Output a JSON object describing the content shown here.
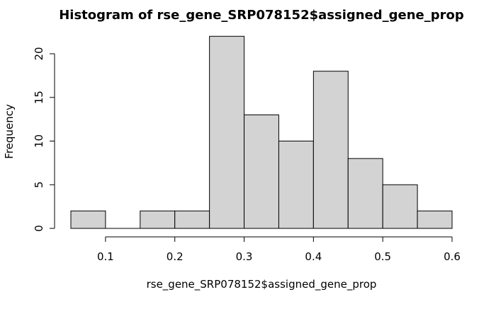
{
  "chart_data": {
    "type": "bar",
    "title": "Histogram of rse_gene_SRP078152$assigned_gene_prop",
    "xlabel": "rse_gene_SRP078152$assigned_gene_prop",
    "ylabel": "Frequency",
    "bins": [
      {
        "start": 0.05,
        "end": 0.1,
        "count": 2
      },
      {
        "start": 0.1,
        "end": 0.15,
        "count": 0
      },
      {
        "start": 0.15,
        "end": 0.2,
        "count": 2
      },
      {
        "start": 0.2,
        "end": 0.25,
        "count": 2
      },
      {
        "start": 0.25,
        "end": 0.3,
        "count": 22
      },
      {
        "start": 0.3,
        "end": 0.35,
        "count": 13
      },
      {
        "start": 0.35,
        "end": 0.4,
        "count": 10
      },
      {
        "start": 0.4,
        "end": 0.45,
        "count": 18
      },
      {
        "start": 0.45,
        "end": 0.5,
        "count": 8
      },
      {
        "start": 0.5,
        "end": 0.55,
        "count": 5
      },
      {
        "start": 0.55,
        "end": 0.6,
        "count": 2
      }
    ],
    "xlim": [
      0.05,
      0.6
    ],
    "ylim": [
      0,
      22
    ],
    "x_ticks": [
      0.1,
      0.2,
      0.3,
      0.4,
      0.5,
      0.6
    ],
    "x_tick_labels": [
      "0.1",
      "0.2",
      "0.3",
      "0.4",
      "0.5",
      "0.6"
    ],
    "y_ticks": [
      0,
      5,
      10,
      15,
      20
    ],
    "y_tick_labels": [
      "0",
      "5",
      "10",
      "15",
      "20"
    ],
    "bar_fill": "#d3d3d3",
    "bar_stroke": "#000000",
    "grid": false,
    "legend": "none"
  }
}
